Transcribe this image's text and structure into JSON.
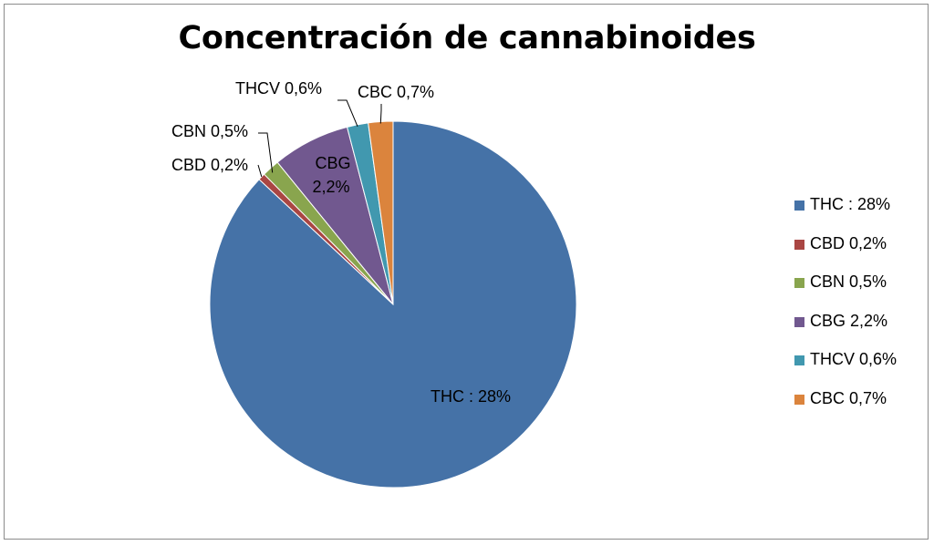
{
  "chart_data": {
    "type": "pie",
    "title": "Concentración de cannabinoides",
    "legend_position": "right",
    "slices": [
      {
        "label": "THC : 28%",
        "value": 28,
        "color": "#4572A7"
      },
      {
        "label": "CBD 0,2%",
        "value": 0.2,
        "color": "#AA4643"
      },
      {
        "label": "CBN 0,5%",
        "value": 0.5,
        "color": "#89A54E"
      },
      {
        "label": "CBG 2,2%",
        "value": 2.2,
        "color": "#71588F"
      },
      {
        "label": "THCV 0,6%",
        "value": 0.6,
        "color": "#4198AF"
      },
      {
        "label": "CBC 0,7%",
        "value": 0.7,
        "color": "#DB843D"
      }
    ],
    "data_labels": [
      "THC : 28%",
      "CBD 0,2%",
      "CBN 0,5%",
      "CBG",
      "2,2%",
      "THCV 0,6%",
      "CBC 0,7%"
    ]
  }
}
